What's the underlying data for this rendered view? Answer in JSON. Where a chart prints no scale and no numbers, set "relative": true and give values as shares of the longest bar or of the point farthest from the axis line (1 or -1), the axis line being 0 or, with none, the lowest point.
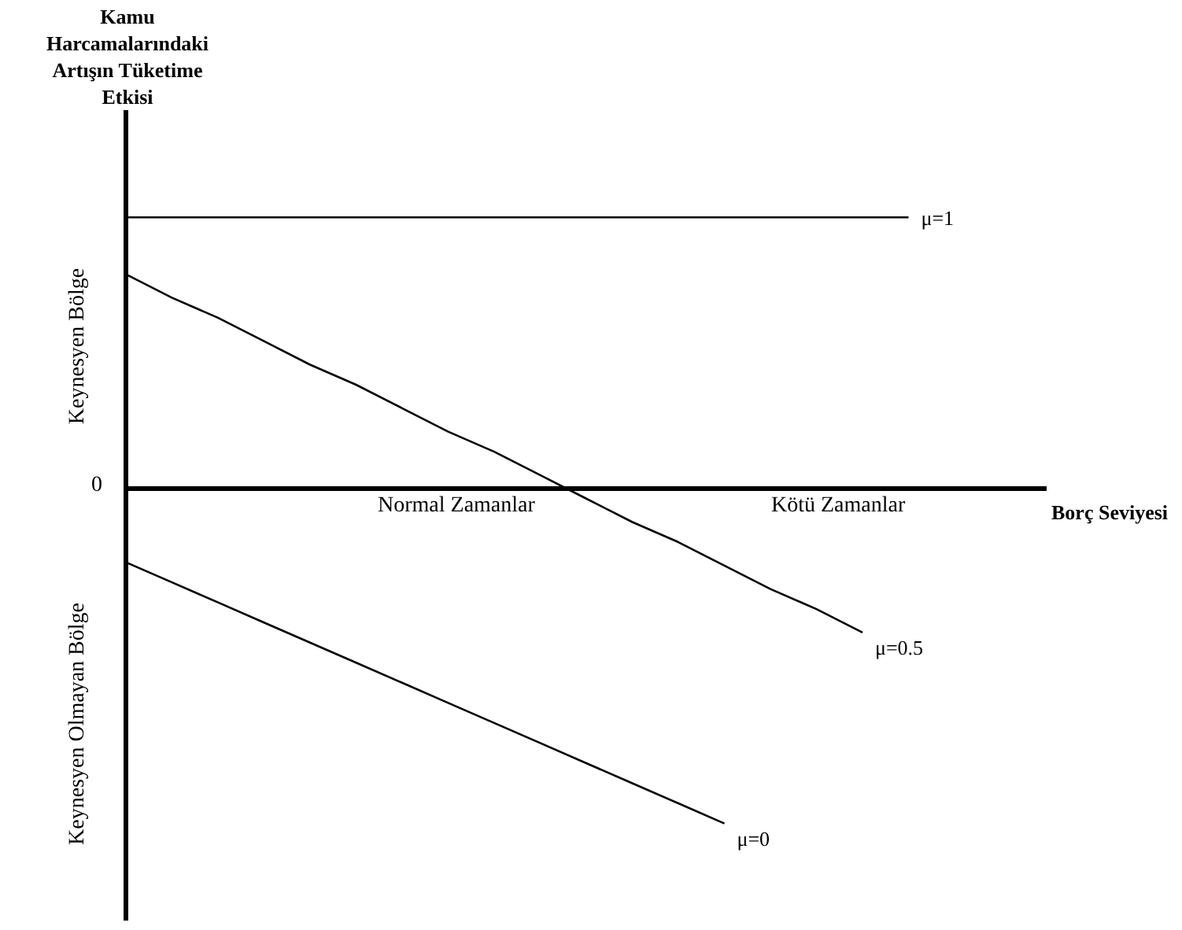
{
  "chart_data": {
    "type": "line",
    "relative": true,
    "title": "Kamu Harcamalarındaki Artışın Tüketime Etkisi",
    "xlabel": "Borç Seviyesi",
    "marker": "none",
    "categories": [
      null,
      null,
      null,
      null,
      null,
      null,
      null,
      null,
      null,
      null,
      null,
      null,
      null,
      null,
      null,
      null,
      null,
      null,
      null,
      null,
      null
    ],
    "series": [
      {
        "name": "μ=1",
        "color": "#000000",
        "values": [
          0.81,
          0.81,
          0.81,
          0.81,
          0.81,
          0.81,
          0.81,
          0.81,
          0.81,
          0.81,
          0.81,
          0.81,
          0.81,
          0.81,
          0.81,
          0.81,
          0.81,
          0.81,
          null,
          null,
          null
        ]
      },
      {
        "name": "μ=0.5",
        "color": "#000000",
        "values": [
          0.64,
          0.57,
          0.51,
          0.44,
          0.37,
          0.31,
          0.24,
          0.17,
          0.11,
          0.04,
          -0.03,
          -0.1,
          -0.16,
          -0.23,
          -0.3,
          -0.36,
          -0.43,
          null,
          null,
          null,
          null
        ]
      },
      {
        "name": "μ=0",
        "color": "#000000",
        "values": [
          -0.22,
          -0.28,
          -0.34,
          -0.4,
          -0.46,
          -0.52,
          -0.58,
          -0.64,
          -0.7,
          -0.76,
          -0.82,
          -0.88,
          -0.94,
          -1,
          null,
          null,
          null,
          null,
          null,
          null,
          null
        ]
      }
    ],
    "annotations": [
      "0",
      "Keynesyen Bölge",
      "Keynesyen Olmayan Bölge",
      "Normal Zamanlar",
      "Kötü Zamanlar"
    ]
  }
}
